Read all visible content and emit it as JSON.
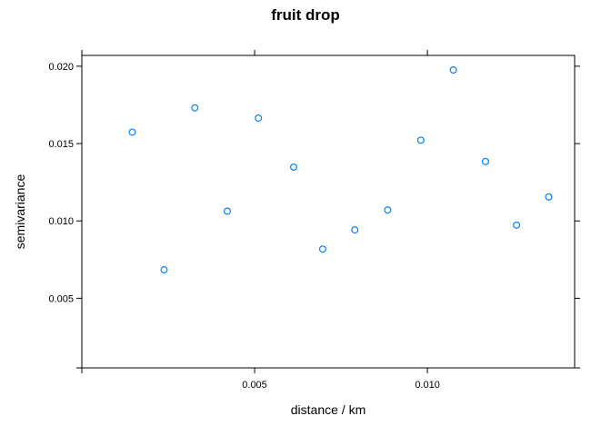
{
  "chart_data": {
    "type": "scatter",
    "title": "fruit drop",
    "xlabel": "distance / km",
    "ylabel": "semivariance",
    "xlim": [
      0.0,
      0.01426
    ],
    "ylim": [
      0.0005,
      0.0207
    ],
    "xticks": [
      0.005,
      0.01
    ],
    "xtick_labels": [
      "0.005",
      "0.010"
    ],
    "yticks": [
      0.005,
      0.01,
      0.015,
      0.02
    ],
    "ytick_labels": [
      "0.005",
      "0.010",
      "0.015",
      "0.020"
    ],
    "grid": false,
    "marker_color": "#0080ff",
    "x": [
      0.00146,
      0.00238,
      0.00327,
      0.00421,
      0.00511,
      0.00613,
      0.00697,
      0.0079,
      0.00885,
      0.00981,
      0.01075,
      0.01168,
      0.01258,
      0.01351
    ],
    "y": [
      0.01574,
      0.00684,
      0.01731,
      0.01063,
      0.01665,
      0.01348,
      0.00818,
      0.00942,
      0.01071,
      0.01522,
      0.01976,
      0.01384,
      0.00973,
      0.01155
    ]
  }
}
